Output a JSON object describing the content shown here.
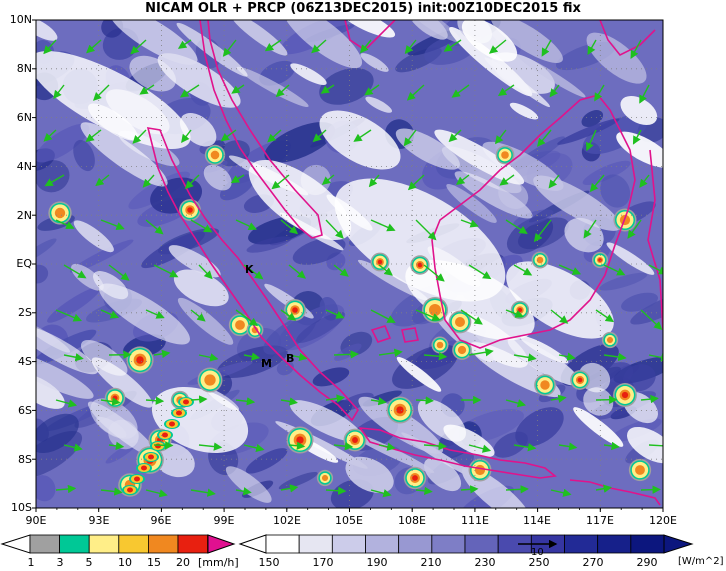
{
  "title": "NICAM OLR + PRCP (06Z13DEC2015) init:00Z10DEC2015 fix",
  "map": {
    "lat_labels": [
      "10N",
      "8N",
      "6N",
      "4N",
      "2N",
      "EQ",
      "2S",
      "4S",
      "6S",
      "8S",
      "10S"
    ],
    "lon_labels": [
      "90E",
      "93E",
      "96E",
      "99E",
      "102E",
      "105E",
      "108E",
      "111E",
      "114E",
      "117E",
      "120E"
    ],
    "lat_range": [
      -10,
      10
    ],
    "lon_range": [
      90,
      120
    ],
    "station_markers": [
      "K",
      "M",
      "B"
    ],
    "colors": {
      "background_cloud": "#ffffff",
      "olr_dark": "#1f2a86",
      "coastline": "#e0138c",
      "wind_vector": "#1fc01f",
      "grid": "#808080"
    }
  },
  "precip_colorbar": {
    "labels": [
      "1",
      "3",
      "5",
      "10",
      "15",
      "20"
    ],
    "unit": "[mm/h]",
    "colors": [
      "#a0a0a0",
      "#00c896",
      "#ffee88",
      "#f8c830",
      "#f08820",
      "#e82010",
      "#e01090"
    ]
  },
  "olr_colorbar": {
    "labels": [
      "150",
      "170",
      "190",
      "210",
      "230",
      "250",
      "270",
      "290"
    ],
    "unit": "[W/m^2]",
    "colors": [
      "#ffffff",
      "#e6e6f2",
      "#ccccea",
      "#b2b2de",
      "#9898d2",
      "#7e7ec6",
      "#6464ba",
      "#4a4aae",
      "#3636a2",
      "#222a96",
      "#16208a",
      "#0c167e"
    ]
  },
  "vector_reference": "10"
}
